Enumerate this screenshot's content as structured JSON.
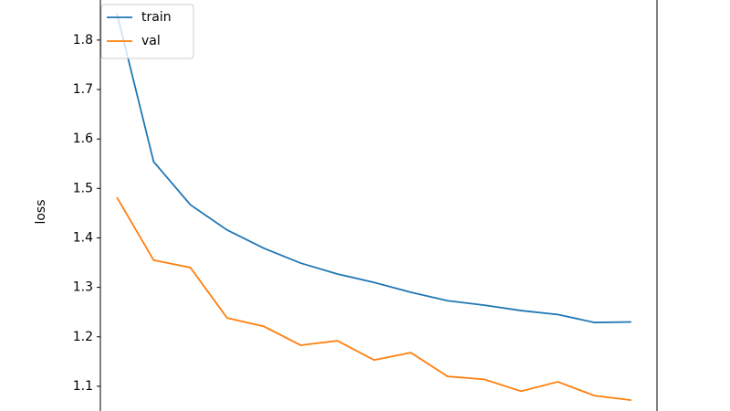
{
  "chart_data": {
    "type": "line",
    "ylabel": "loss",
    "x": [
      0,
      1,
      2,
      3,
      4,
      5,
      6,
      7,
      8,
      9,
      10,
      11,
      12,
      13,
      14
    ],
    "series": [
      {
        "name": "train",
        "color": "#1f77b4",
        "values": [
          1.854,
          1.554,
          1.467,
          1.416,
          1.379,
          1.349,
          1.327,
          1.31,
          1.29,
          1.273,
          1.264,
          1.253,
          1.245,
          1.229,
          1.23
        ]
      },
      {
        "name": "val",
        "color": "#ff7f0e",
        "values": [
          1.482,
          1.355,
          1.34,
          1.238,
          1.221,
          1.183,
          1.192,
          1.153,
          1.168,
          1.12,
          1.114,
          1.09,
          1.109,
          1.081,
          1.072
        ]
      }
    ],
    "xlim": [
      -0.45,
      14.7
    ],
    "ylim": [
      1.05,
      1.881
    ],
    "yticks": [
      1.1,
      1.2,
      1.3,
      1.4,
      1.5,
      1.6,
      1.7,
      1.8
    ],
    "legend": "upper left"
  }
}
